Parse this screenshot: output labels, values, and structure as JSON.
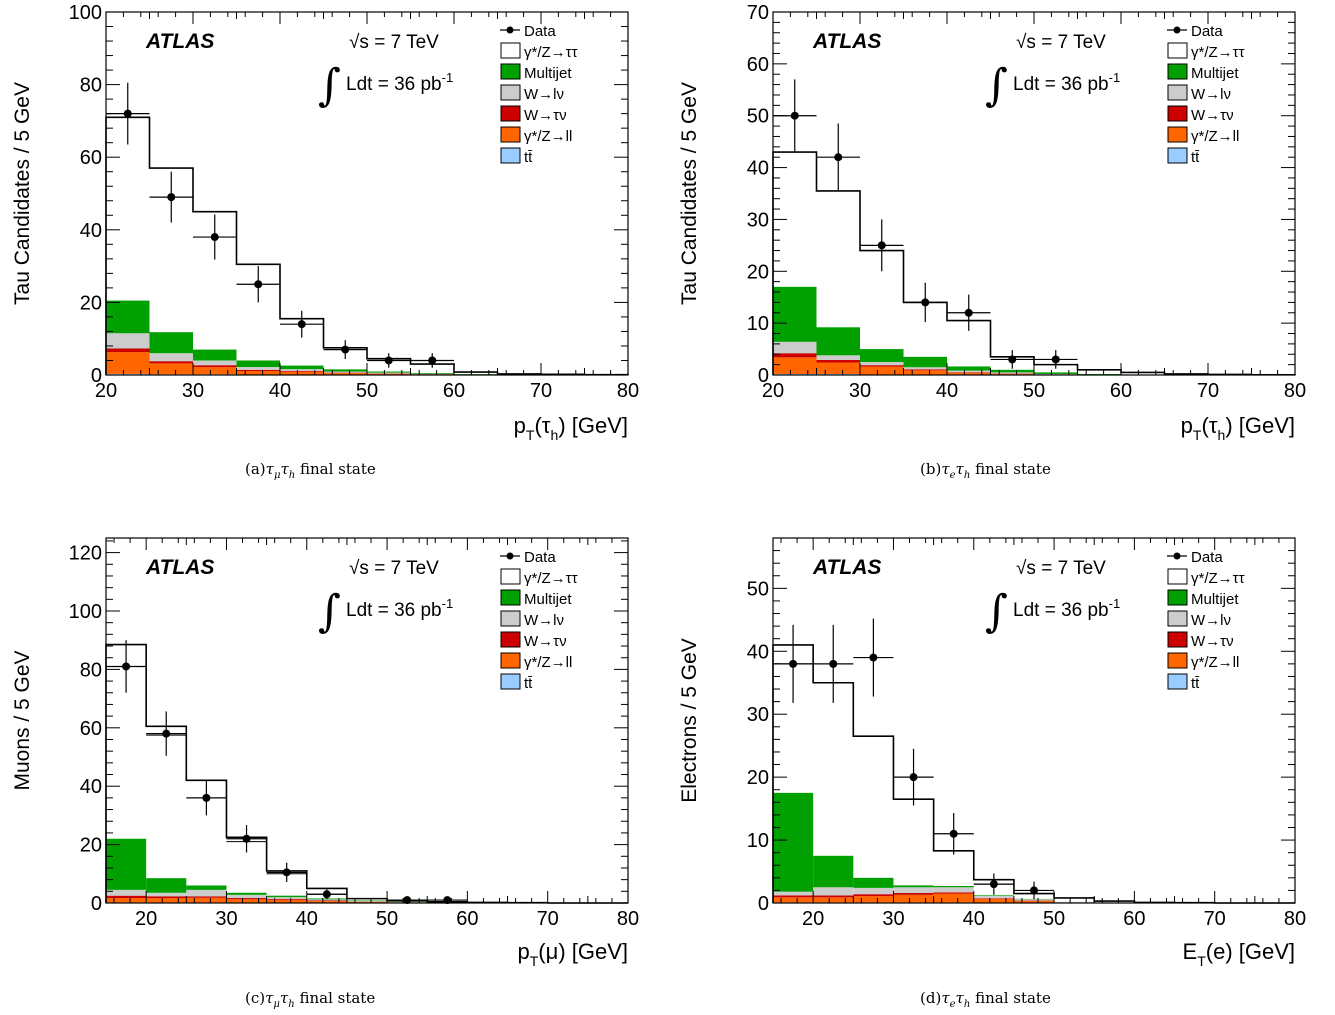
{
  "experiment": "ATLAS",
  "energy_label": "√s = 7 TeV",
  "lumi_label": "Ldt = 36 pb",
  "lumi_exp": "-1",
  "legend": [
    "Data",
    "γ*/Z→ττ",
    "Multijet",
    "W→lν",
    "W→τν",
    "γ*/Z→ll",
    "tt̄"
  ],
  "colors": {
    "ztautau": "#ffffff",
    "multijet": "#00a000",
    "wlnu": "#cccccc",
    "wtaunu": "#cc0000",
    "zll": "#ff6600",
    "ttbar": "#99ccff"
  },
  "chart_data": [
    {
      "type": "bar",
      "panel": "a",
      "caption_prefix": "(a)",
      "caption_suffix": " final state",
      "ylabel": "Tau Candidates / 5 GeV",
      "xlabel": "p",
      "xlabel_sub": "T",
      "xlabel_arg": "(τ",
      "xlabel_arg_sub": "h",
      "xlabel_tail": ")  [GeV]",
      "xlim": [
        20,
        80
      ],
      "ylim": [
        0,
        100
      ],
      "yticks": [
        0,
        20,
        40,
        60,
        80,
        100
      ],
      "bin_edges": [
        20,
        25,
        30,
        35,
        40,
        45,
        50,
        55,
        60,
        65,
        70,
        75,
        80
      ],
      "stack": {
        "ttbar": [
          0.3,
          0.2,
          0.2,
          0.1,
          0.1,
          0.05,
          0.05,
          0,
          0,
          0,
          0,
          0
        ],
        "zll": [
          6,
          3,
          2,
          1,
          0.8,
          0.5,
          0.3,
          0.2,
          0.1,
          0.05,
          0,
          0
        ],
        "wtaunu": [
          1,
          0.6,
          0.5,
          0.3,
          0.2,
          0.1,
          0.1,
          0.05,
          0,
          0,
          0,
          0
        ],
        "wlnu": [
          4.2,
          2.2,
          1.3,
          0.8,
          0.5,
          0.3,
          0.2,
          0.1,
          0.05,
          0,
          0,
          0
        ],
        "multijet": [
          9,
          5.8,
          3,
          1.8,
          1,
          0.6,
          0.3,
          0.2,
          0.1,
          0.05,
          0,
          0
        ]
      },
      "total": [
        71,
        57,
        45,
        30.5,
        15.5,
        7.5,
        4.5,
        3,
        0.8,
        0.3,
        0.2,
        0.1
      ],
      "data": {
        "x": [
          22.5,
          27.5,
          32.5,
          37.5,
          42.5,
          47.5,
          52.5,
          57.5
        ],
        "y": [
          72,
          49,
          38,
          25,
          14,
          7,
          4,
          4
        ],
        "err": [
          8.5,
          7,
          6.2,
          5,
          3.7,
          2.6,
          2,
          2
        ]
      }
    },
    {
      "type": "bar",
      "panel": "b",
      "caption_prefix": "(b)",
      "caption_suffix": " final state",
      "ylabel": "Tau Candidates / 5 GeV",
      "xlabel": "p",
      "xlabel_sub": "T",
      "xlabel_arg": "(τ",
      "xlabel_arg_sub": "h",
      "xlabel_tail": ")  [GeV]",
      "xlim": [
        20,
        80
      ],
      "ylim": [
        0,
        70
      ],
      "yticks": [
        0,
        10,
        20,
        30,
        40,
        50,
        60,
        70
      ],
      "bin_edges": [
        20,
        25,
        30,
        35,
        40,
        45,
        50,
        55,
        60,
        65,
        70,
        75,
        80
      ],
      "stack": {
        "ttbar": [
          0.2,
          0.2,
          0.1,
          0.1,
          0.05,
          0.05,
          0,
          0,
          0,
          0,
          0,
          0
        ],
        "zll": [
          3.2,
          2.2,
          1.5,
          0.8,
          0.4,
          0.2,
          0.1,
          0.05,
          0,
          0,
          0,
          0
        ],
        "wtaunu": [
          0.8,
          0.5,
          0.3,
          0.2,
          0.1,
          0.05,
          0,
          0,
          0,
          0,
          0,
          0
        ],
        "wlnu": [
          2.2,
          0.9,
          0.6,
          0.4,
          0.3,
          0.2,
          0.1,
          0.05,
          0,
          0,
          0,
          0
        ],
        "multijet": [
          10.6,
          5.4,
          2.5,
          2,
          0.8,
          0.5,
          0.3,
          0.1,
          0.05,
          0,
          0,
          0
        ]
      },
      "total": [
        43,
        35.5,
        24,
        14,
        10.5,
        3.5,
        2,
        1,
        0.5,
        0.2,
        0.1,
        0.05
      ],
      "data": {
        "x": [
          22.5,
          27.5,
          32.5,
          37.5,
          42.5,
          47.5,
          52.5
        ],
        "y": [
          50,
          42,
          25,
          14,
          12,
          3,
          3
        ],
        "err": [
          7,
          6.5,
          5,
          3.8,
          3.5,
          1.8,
          1.8
        ]
      }
    },
    {
      "type": "bar",
      "panel": "c",
      "caption_prefix": "(c)",
      "caption_suffix": " final state",
      "ylabel": "Muons / 5 GeV",
      "xlabel": "p",
      "xlabel_sub": "T",
      "xlabel_arg": "(μ",
      "xlabel_arg_sub": "",
      "xlabel_tail": ")  [GeV]",
      "xlim": [
        15,
        80
      ],
      "ylim": [
        0,
        125
      ],
      "yticks": [
        0,
        20,
        40,
        60,
        80,
        100,
        120
      ],
      "bin_edges": [
        15,
        20,
        25,
        30,
        35,
        40,
        45,
        50,
        55,
        60,
        65,
        70,
        75,
        80
      ],
      "stack": {
        "ttbar": [
          0.2,
          0.2,
          0.2,
          0.1,
          0.1,
          0.05,
          0.05,
          0,
          0,
          0,
          0,
          0,
          0
        ],
        "zll": [
          1.5,
          1.5,
          1.6,
          1.2,
          1,
          0.6,
          0.3,
          0.2,
          0.1,
          0,
          0,
          0,
          0
        ],
        "wtaunu": [
          0.8,
          0.6,
          0.5,
          0.4,
          0.3,
          0.2,
          0.1,
          0.05,
          0,
          0,
          0,
          0,
          0
        ],
        "wlnu": [
          2,
          1.2,
          2.2,
          1.1,
          0.6,
          0.4,
          0.2,
          0.1,
          0.05,
          0,
          0,
          0,
          0
        ],
        "multijet": [
          17.5,
          5,
          1.5,
          0.7,
          0.5,
          0.3,
          0.2,
          0.1,
          0.05,
          0,
          0,
          0,
          0
        ]
      },
      "total": [
        88.5,
        60.5,
        42,
        22.5,
        11,
        5,
        1.5,
        0.8,
        0.4,
        0.2,
        0.1,
        0,
        0
      ],
      "total_lower": [
        81,
        57.5,
        0,
        21,
        10,
        3,
        0,
        0,
        0,
        0,
        0,
        0,
        0
      ],
      "data": {
        "x": [
          17.5,
          22.5,
          27.5,
          32.5,
          37.5,
          42.5,
          52.5,
          57.5
        ],
        "y": [
          81,
          58,
          36,
          22,
          10.5,
          3,
          1,
          1
        ],
        "err": [
          9,
          7.6,
          6,
          4.7,
          3.3,
          1.7,
          1,
          1
        ]
      }
    },
    {
      "type": "bar",
      "panel": "d",
      "caption_prefix": "(d)",
      "caption_suffix": " final state",
      "ylabel": "Electrons / 5 GeV",
      "xlabel": "E",
      "xlabel_sub": "T",
      "xlabel_arg": "(e",
      "xlabel_arg_sub": "",
      "xlabel_tail": ")  [GeV]",
      "xlim": [
        15,
        80
      ],
      "ylim": [
        0,
        58
      ],
      "yticks": [
        0,
        10,
        20,
        30,
        40,
        50
      ],
      "bin_edges": [
        15,
        20,
        25,
        30,
        35,
        40,
        45,
        50,
        55,
        60,
        65,
        70,
        75,
        80
      ],
      "stack": {
        "ttbar": [
          0.1,
          0.1,
          0.1,
          0.1,
          0.1,
          0.05,
          0.05,
          0,
          0,
          0,
          0,
          0,
          0
        ],
        "zll": [
          0.8,
          0.8,
          1,
          1.2,
          1.4,
          0.6,
          0.3,
          0.1,
          0.05,
          0,
          0,
          0,
          0
        ],
        "wtaunu": [
          0.3,
          0.3,
          0.3,
          0.3,
          0.2,
          0.1,
          0.05,
          0,
          0,
          0,
          0,
          0,
          0
        ],
        "wlnu": [
          0.6,
          1.3,
          1,
          0.9,
          0.8,
          0.4,
          0.2,
          0.1,
          0.05,
          0,
          0,
          0,
          0
        ],
        "multijet": [
          15.7,
          5,
          1.6,
          0.3,
          0.2,
          0.1,
          0.05,
          0,
          0,
          0,
          0,
          0,
          0
        ]
      },
      "total": [
        41,
        35,
        26.5,
        16.5,
        8.3,
        3.7,
        1.5,
        0.8,
        0.3,
        0.1,
        0.05,
        0,
        0
      ],
      "total_lower": [
        38,
        0,
        0,
        0,
        0,
        3,
        0,
        0,
        0,
        0,
        0,
        0,
        0
      ],
      "data": {
        "x": [
          17.5,
          22.5,
          27.5,
          32.5,
          37.5,
          42.5,
          47.5
        ],
        "y": [
          38,
          38,
          39,
          20,
          11,
          3,
          2
        ],
        "err": [
          6.2,
          6.2,
          6.2,
          4.5,
          3.3,
          1.7,
          1.4
        ]
      }
    }
  ]
}
